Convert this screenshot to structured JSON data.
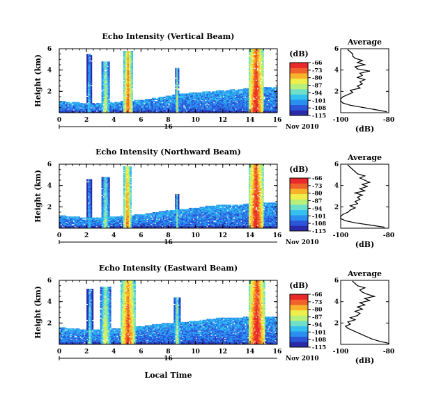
{
  "colors": {
    "colormap": [
      "#2a2aa8",
      "#2a55d8",
      "#2a8ff0",
      "#35c0ee",
      "#6fe0c8",
      "#b8ef7a",
      "#f0ee4a",
      "#f8b22a",
      "#f0622a",
      "#ea2a2a"
    ],
    "axis": "#000000"
  },
  "common": {
    "date_label": "Nov 2010",
    "day_label": "16",
    "xlabel": "Local Time",
    "ylabel": "Height (km)",
    "cbar_unit": "(dB)",
    "profile_title": "Average",
    "profile_xlabel": "(dB)"
  },
  "chart_data": [
    {
      "type": "heatmap",
      "title": "Echo Intensity (Vertical Beam)",
      "xlabel": "",
      "ylabel": "Height (km)",
      "xlim": [
        0,
        16
      ],
      "ylim": [
        0,
        6
      ],
      "x_ticks": [
        0,
        2,
        4,
        6,
        8,
        10,
        12,
        14,
        16
      ],
      "y_ticks": [
        2,
        4,
        6
      ],
      "colorbar": {
        "unit": "(dB)",
        "ticks": [
          -66,
          -73,
          -80,
          -87,
          -94,
          -101,
          -108,
          -115
        ],
        "range": [
          -115,
          -66
        ]
      },
      "features": [
        {
          "kind": "boundary_layer",
          "top_km": [
            1.1,
            1.0,
            0.9,
            0.9,
            1.0,
            1.1,
            1.2,
            1.4,
            1.6,
            1.8,
            1.9,
            2.0,
            2.1,
            2.2,
            2.3,
            2.4,
            2.4
          ]
        },
        {
          "kind": "column",
          "x_start": 2.0,
          "x_end": 2.4,
          "top_km": 5.5,
          "intensity_db": -95
        },
        {
          "kind": "column",
          "x_start": 3.1,
          "x_end": 3.7,
          "top_km": 4.8,
          "intensity_db": -85
        },
        {
          "kind": "column",
          "x_start": 4.7,
          "x_end": 5.4,
          "top_km": 5.8,
          "intensity_db": -74
        },
        {
          "kind": "column",
          "x_start": 8.5,
          "x_end": 8.8,
          "top_km": 4.2,
          "intensity_db": -88
        },
        {
          "kind": "column",
          "x_start": 13.9,
          "x_end": 15.0,
          "top_km": 6.0,
          "intensity_db": -68
        }
      ],
      "profile": {
        "title": "Average",
        "xlabel": "(dB)",
        "xlim": [
          -100,
          -80
        ],
        "x_ticks": [
          -100,
          -80
        ],
        "y_ticks": [
          2,
          4,
          6
        ],
        "height_km": [
          0.1,
          0.3,
          0.5,
          0.7,
          0.9,
          1.1,
          1.3,
          1.5,
          1.7,
          1.9,
          2.1,
          2.3,
          2.5,
          2.7,
          2.9,
          3.1,
          3.3,
          3.5,
          3.7,
          3.9,
          4.1,
          4.3,
          4.5,
          4.7,
          4.9,
          5.1,
          5.3,
          5.5,
          5.7,
          5.9
        ],
        "mean_db": [
          -81,
          -86,
          -91,
          -96,
          -99,
          -100,
          -100,
          -99,
          -97,
          -95,
          -96,
          -92,
          -93,
          -91,
          -92,
          -90,
          -93,
          -91,
          -92,
          -88,
          -93,
          -94,
          -90,
          -93,
          -91,
          -94,
          -95,
          -95,
          -96,
          -97
        ]
      }
    },
    {
      "type": "heatmap",
      "title": "Echo Intensity (Northward Beam)",
      "xlabel": "",
      "ylabel": "Height (km)",
      "xlim": [
        0,
        16
      ],
      "ylim": [
        0,
        6
      ],
      "x_ticks": [
        0,
        2,
        4,
        6,
        8,
        10,
        12,
        14,
        16
      ],
      "y_ticks": [
        2,
        4,
        6
      ],
      "colorbar": {
        "unit": "(dB)",
        "ticks": [
          -66,
          -73,
          -80,
          -87,
          -94,
          -101,
          -108,
          -115
        ],
        "range": [
          -115,
          -66
        ]
      },
      "features": [
        {
          "kind": "boundary_layer",
          "top_km": [
            1.2,
            1.1,
            1.0,
            1.0,
            1.1,
            1.2,
            1.3,
            1.5,
            1.7,
            1.8,
            1.9,
            2.1,
            2.2,
            2.2,
            2.3,
            2.4,
            2.4
          ]
        },
        {
          "kind": "column",
          "x_start": 2.0,
          "x_end": 2.4,
          "top_km": 4.6,
          "intensity_db": -96
        },
        {
          "kind": "column",
          "x_start": 3.1,
          "x_end": 3.7,
          "top_km": 4.8,
          "intensity_db": -88
        },
        {
          "kind": "column",
          "x_start": 4.7,
          "x_end": 5.3,
          "top_km": 5.8,
          "intensity_db": -75
        },
        {
          "kind": "column",
          "x_start": 8.5,
          "x_end": 8.8,
          "top_km": 3.2,
          "intensity_db": -92
        },
        {
          "kind": "column",
          "x_start": 13.9,
          "x_end": 15.0,
          "top_km": 6.0,
          "intensity_db": -68
        }
      ],
      "profile": {
        "title": "Average",
        "xlabel": "(dB)",
        "xlim": [
          -100,
          -80
        ],
        "x_ticks": [
          -100,
          -80
        ],
        "y_ticks": [
          2,
          4,
          6
        ],
        "height_km": [
          0.1,
          0.3,
          0.5,
          0.7,
          0.9,
          1.1,
          1.3,
          1.5,
          1.7,
          1.9,
          2.1,
          2.3,
          2.5,
          2.7,
          2.9,
          3.1,
          3.3,
          3.5,
          3.7,
          3.9,
          4.1,
          4.3,
          4.5,
          4.7,
          4.9,
          5.1,
          5.3,
          5.5,
          5.7,
          5.9
        ],
        "mean_db": [
          -82,
          -88,
          -94,
          -98,
          -100,
          -100,
          -99,
          -97,
          -96,
          -94,
          -96,
          -93,
          -94,
          -92,
          -93,
          -91,
          -94,
          -90,
          -92,
          -89,
          -91,
          -88,
          -90,
          -92,
          -90,
          -93,
          -94,
          -95,
          -96,
          -97
        ]
      }
    },
    {
      "type": "heatmap",
      "title": "Echo Intensity (Eastward Beam)",
      "xlabel": "Local Time",
      "ylabel": "Height (km)",
      "xlim": [
        0,
        16
      ],
      "ylim": [
        0,
        6
      ],
      "x_ticks": [
        0,
        2,
        4,
        6,
        8,
        10,
        12,
        14,
        16
      ],
      "y_ticks": [
        2,
        4,
        6
      ],
      "colorbar": {
        "unit": "(dB)",
        "ticks": [
          -66,
          -73,
          -80,
          -87,
          -94,
          -101,
          -108,
          -115
        ],
        "range": [
          -115,
          -66
        ]
      },
      "features": [
        {
          "kind": "boundary_layer",
          "top_km": [
            1.6,
            1.5,
            1.4,
            1.4,
            1.5,
            1.6,
            1.7,
            1.9,
            2.0,
            2.1,
            2.2,
            2.4,
            2.5,
            2.5,
            2.6,
            2.6,
            2.6
          ]
        },
        {
          "kind": "column",
          "x_start": 2.0,
          "x_end": 2.5,
          "top_km": 5.2,
          "intensity_db": -94
        },
        {
          "kind": "column",
          "x_start": 3.0,
          "x_end": 3.8,
          "top_km": 5.4,
          "intensity_db": -84
        },
        {
          "kind": "column",
          "x_start": 4.5,
          "x_end": 5.6,
          "top_km": 6.0,
          "intensity_db": -72
        },
        {
          "kind": "column",
          "x_start": 8.4,
          "x_end": 8.9,
          "top_km": 4.4,
          "intensity_db": -88
        },
        {
          "kind": "column",
          "x_start": 13.9,
          "x_end": 15.1,
          "top_km": 6.0,
          "intensity_db": -67
        }
      ],
      "profile": {
        "title": "Average",
        "xlabel": "(dB)",
        "xlim": [
          -100,
          -80
        ],
        "x_ticks": [
          -100,
          -80
        ],
        "y_ticks": [
          2,
          4,
          6
        ],
        "height_km": [
          0.1,
          0.3,
          0.5,
          0.7,
          0.9,
          1.1,
          1.3,
          1.5,
          1.7,
          1.9,
          2.1,
          2.3,
          2.5,
          2.7,
          2.9,
          3.1,
          3.3,
          3.5,
          3.7,
          3.9,
          4.1,
          4.3,
          4.5,
          4.7,
          4.9,
          5.1,
          5.3,
          5.5,
          5.7,
          5.9
        ],
        "mean_db": [
          -80,
          -84,
          -87,
          -89,
          -91,
          -93,
          -95,
          -97,
          -98,
          -96,
          -97,
          -94,
          -96,
          -93,
          -92,
          -94,
          -91,
          -93,
          -90,
          -92,
          -88,
          -90,
          -86,
          -89,
          -91,
          -92,
          -90,
          -93,
          -94,
          -95
        ]
      }
    }
  ]
}
